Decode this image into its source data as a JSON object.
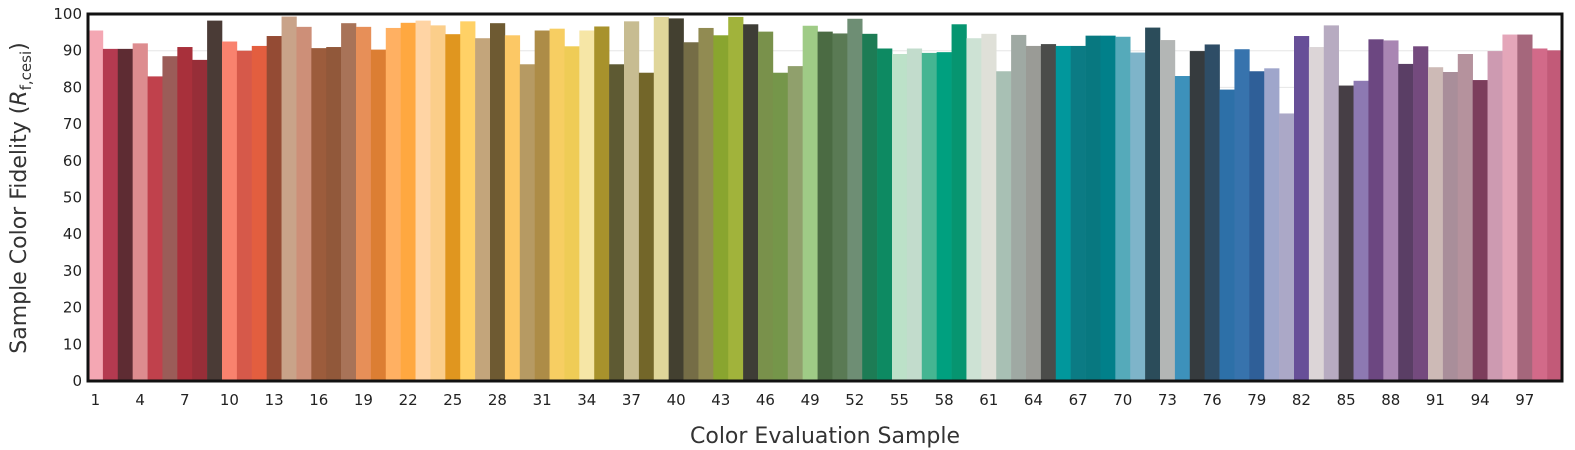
{
  "chart_data": {
    "type": "bar",
    "xlabel": "Color Evaluation Sample",
    "ylabel_prefix": "Sample Color Fidelity (",
    "ylabel_symbol": "R",
    "ylabel_subscript": "f,cesi",
    "ylabel_suffix": ")",
    "ylim": [
      0,
      100
    ],
    "yticks": [
      0,
      10,
      20,
      30,
      40,
      50,
      60,
      70,
      80,
      90,
      100
    ],
    "xtick_labels": [
      "1",
      "4",
      "7",
      "10",
      "13",
      "16",
      "19",
      "22",
      "25",
      "28",
      "31",
      "34",
      "37",
      "40",
      "43",
      "46",
      "49",
      "52",
      "55",
      "58",
      "61",
      "64",
      "67",
      "70",
      "73",
      "76",
      "79",
      "82",
      "85",
      "88",
      "91",
      "94",
      "97"
    ],
    "grid": "horizontal",
    "categories": [
      1,
      2,
      3,
      4,
      5,
      6,
      7,
      8,
      9,
      10,
      11,
      12,
      13,
      14,
      15,
      16,
      17,
      18,
      19,
      20,
      21,
      22,
      23,
      24,
      25,
      26,
      27,
      28,
      29,
      30,
      31,
      32,
      33,
      34,
      35,
      36,
      37,
      38,
      39,
      40,
      41,
      42,
      43,
      44,
      45,
      46,
      47,
      48,
      49,
      50,
      51,
      52,
      53,
      54,
      55,
      56,
      57,
      58,
      59,
      60,
      61,
      62,
      63,
      64,
      65,
      66,
      67,
      68,
      69,
      70,
      71,
      72,
      73,
      74,
      75,
      76,
      77,
      78,
      79,
      80,
      81,
      82,
      83,
      84,
      85,
      86,
      87,
      88,
      89,
      90,
      91,
      92,
      93,
      94,
      95,
      96,
      97,
      98,
      99
    ],
    "values": [
      95.5,
      90.5,
      90.5,
      92,
      83,
      88.5,
      91,
      87.5,
      98.2,
      92.5,
      90,
      91.3,
      94,
      99.3,
      96.5,
      90.7,
      91,
      97.5,
      96.5,
      90.3,
      96.2,
      97.6,
      98.2,
      96.9,
      94.5,
      98,
      93.4,
      97.5,
      94.2,
      86.3,
      95.5,
      96,
      91.2,
      95.5,
      96.6,
      86.3,
      98,
      84,
      99.2,
      98.8,
      92.3,
      96.2,
      94.2,
      99.2,
      97.2,
      95.2,
      84,
      85.8,
      96.8,
      95.2,
      94.7,
      98.7,
      94.6,
      90.6,
      89.1,
      90.6,
      89.4,
      89.6,
      97.2,
      93.4,
      94.6,
      84.4,
      94.3,
      91.3,
      91.8,
      91.3,
      91.3,
      94.1,
      94.1,
      93.8,
      89.5,
      96.3,
      92.9,
      83.1,
      89.9,
      91.7,
      79.4,
      90.4,
      84.4,
      85.2,
      72.9,
      94,
      91,
      96.9,
      80.5,
      81.8,
      93.1,
      92.8,
      86.4,
      91.2,
      85.5,
      84.2,
      89.1,
      82,
      89.9,
      94.4,
      94.4,
      90.6,
      90.1
    ],
    "colors": [
      "#f4a7b3",
      "#b43a50",
      "#5e2c33",
      "#dd8c8f",
      "#c0414c",
      "#9b5c58",
      "#a8303b",
      "#972e38",
      "#4a3b36",
      "#f9826e",
      "#d6594a",
      "#e35e3f",
      "#944b34",
      "#c9a389",
      "#cd8f78",
      "#9c5c3c",
      "#91583a",
      "#a87358",
      "#e78f58",
      "#dc7e33",
      "#ffb062",
      "#ffa840",
      "#ffd4a4",
      "#fbce8a",
      "#e0961f",
      "#ffd166",
      "#c3a57b",
      "#6e5a32",
      "#fcc865",
      "#b69a63",
      "#ad8c47",
      "#f7ce62",
      "#efcc56",
      "#f6e6a6",
      "#a8922c",
      "#5e5a33",
      "#c7bc91",
      "#736629",
      "#e0d69a",
      "#434030",
      "#756d46",
      "#918b52",
      "#89a52f",
      "#a1b33b",
      "#3e3d36",
      "#79914b",
      "#75964a",
      "#90a06c",
      "#9fcb86",
      "#4b6b43",
      "#5a7a54",
      "#6e8e74",
      "#1d7c55",
      "#0d8a62",
      "#bce1c8",
      "#c2dccc",
      "#45b592",
      "#00a07f",
      "#069570",
      "#cde2d4",
      "#dfe0d8",
      "#a8c0b4",
      "#9fa9a3",
      "#9a9b96",
      "#4b4c4a",
      "#01979c",
      "#0b7b84",
      "#087880",
      "#01808a",
      "#55aaba",
      "#7eb4c9",
      "#2b4c5a",
      "#b3b6b5",
      "#3d91bb",
      "#363b3e",
      "#2e4d66",
      "#2d70a8",
      "#3773ad",
      "#2f5f98",
      "#9fa6cb",
      "#aba8c7",
      "#674f98",
      "#dcd5d7",
      "#b7abc1",
      "#463e45",
      "#8d79b2",
      "#6c4781",
      "#a986b3",
      "#5a3e65",
      "#744a7e",
      "#cdbab6",
      "#a98e9a",
      "#b5929d",
      "#7c3d5c",
      "#cd9ab1",
      "#e4a6b9",
      "#a5677c",
      "#d26a89",
      "#c25a78"
    ]
  }
}
